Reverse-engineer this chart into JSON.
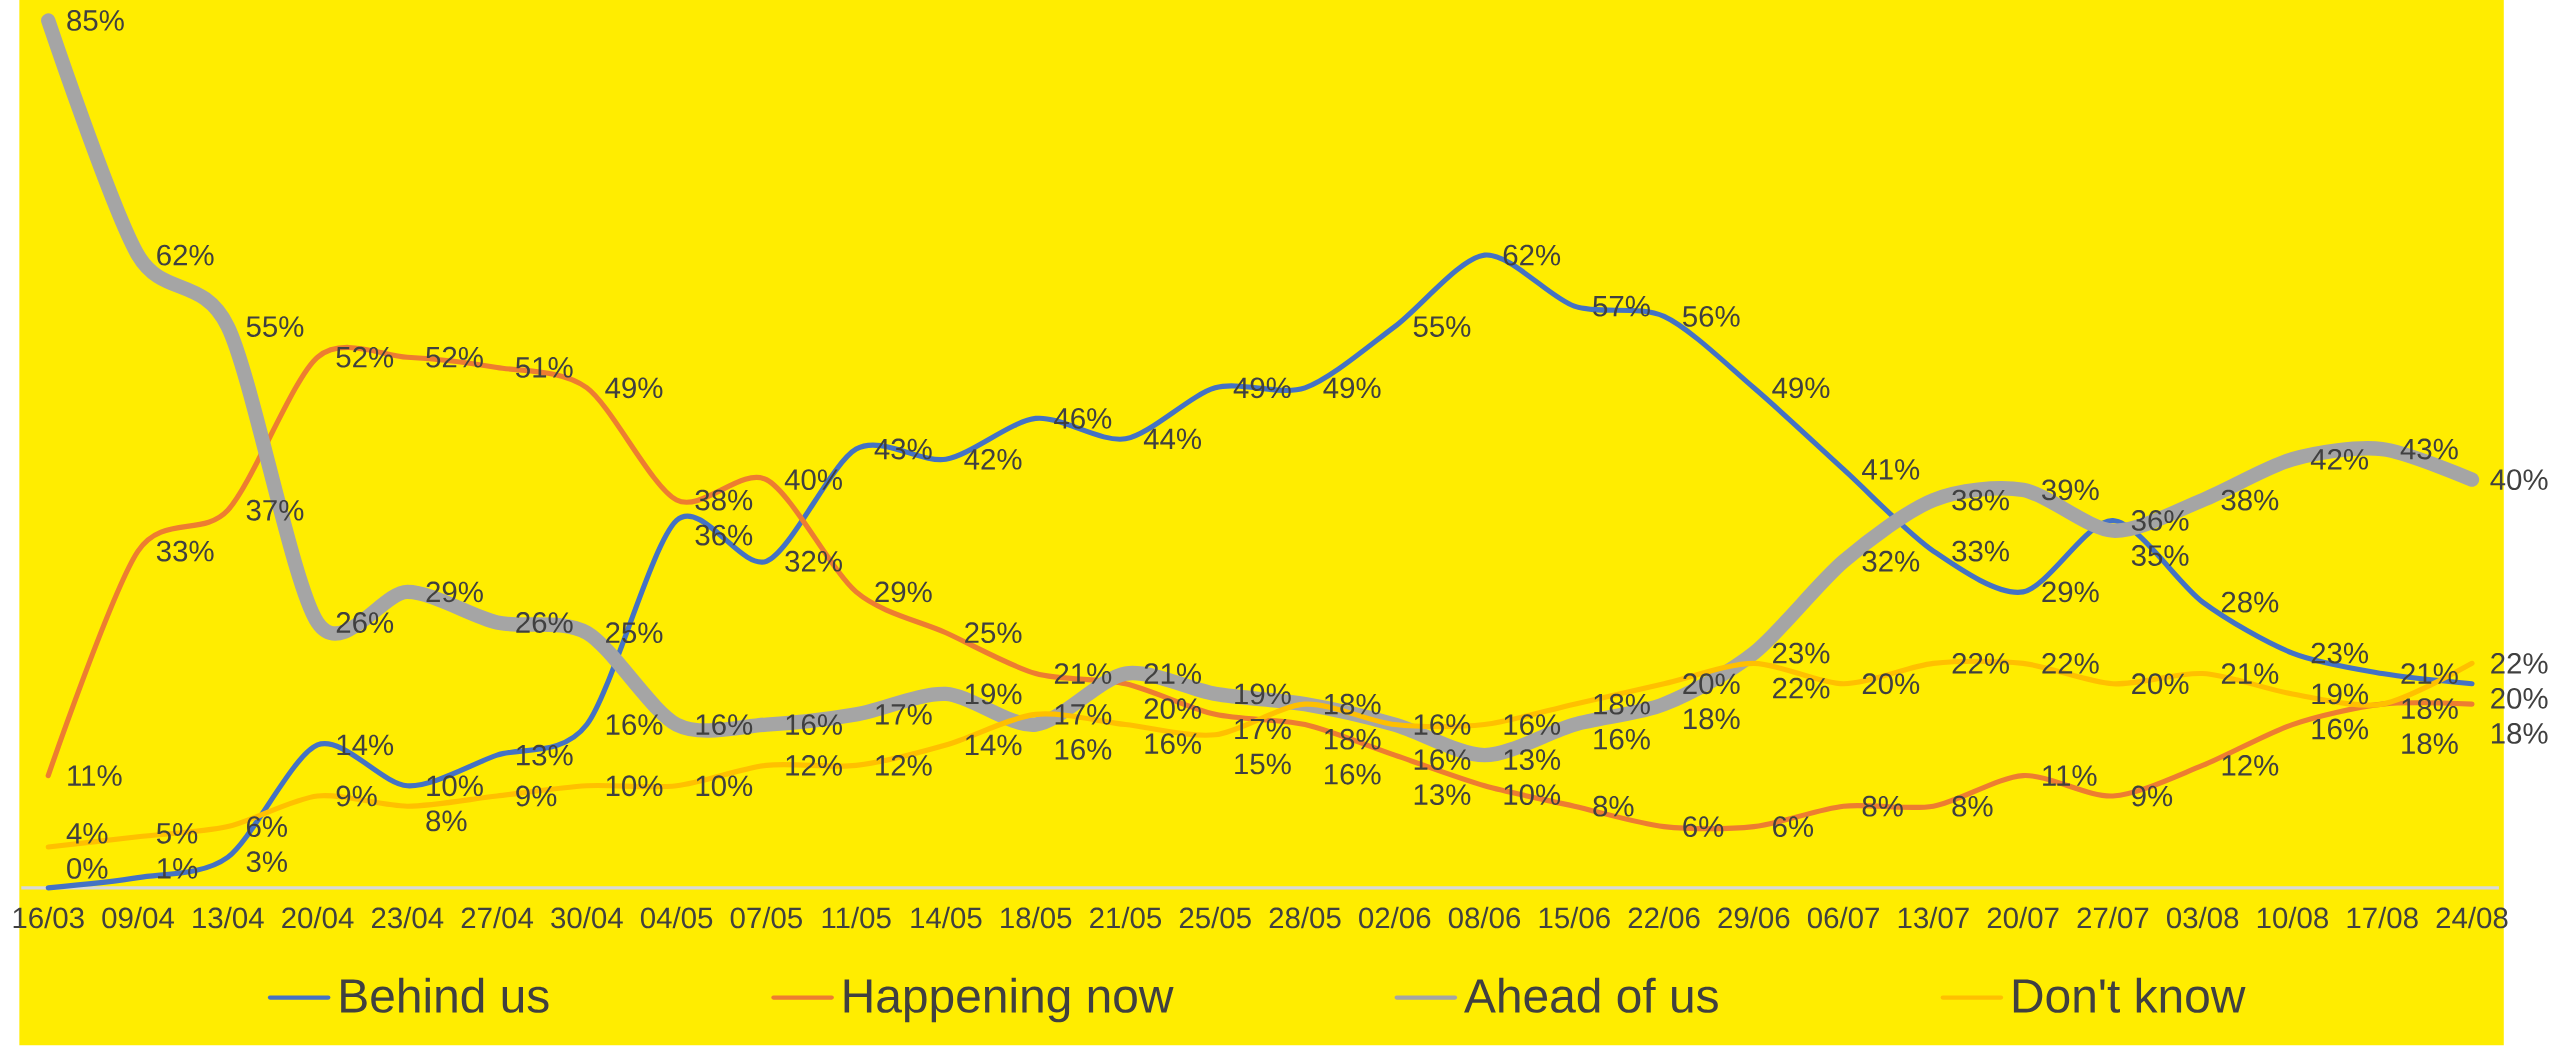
{
  "chart_data": {
    "type": "line",
    "categories": [
      "16/03",
      "09/04",
      "13/04",
      "20/04",
      "23/04",
      "27/04",
      "30/04",
      "04/05",
      "07/05",
      "11/05",
      "14/05",
      "18/05",
      "21/05",
      "25/05",
      "28/05",
      "02/06",
      "08/06",
      "15/06",
      "22/06",
      "29/06",
      "06/07",
      "13/07",
      "20/07",
      "27/07",
      "03/08",
      "10/08",
      "17/08",
      "24/08"
    ],
    "series": [
      {
        "name": "Behind us",
        "color": "#4472c4",
        "values": [
          0,
          1,
          3,
          14,
          10,
          13,
          16,
          36,
          32,
          43,
          42,
          46,
          44,
          49,
          49,
          55,
          62,
          57,
          56,
          49,
          41,
          33,
          29,
          36,
          28,
          23,
          21,
          20
        ],
        "value_labels": [
          "0%",
          "1%",
          "3%",
          "14%",
          "10%",
          "13%",
          "16%",
          "36%",
          "32%",
          "43%",
          "42%",
          "46%",
          "44%",
          "49%",
          "49%",
          "55%",
          "62%",
          "57%",
          "56%",
          "49%",
          "41%",
          "33%",
          "29%",
          "36%",
          "28%",
          "23%",
          "21%",
          "20%"
        ]
      },
      {
        "name": "Happening now",
        "color": "#ed7d31",
        "values": [
          11,
          33,
          37,
          52,
          52,
          51,
          49,
          38,
          40,
          29,
          25,
          21,
          20,
          17,
          16,
          13,
          10,
          8,
          6,
          6,
          8,
          8,
          11,
          9,
          12,
          16,
          18,
          18
        ],
        "value_labels": [
          "11%",
          "33%",
          "37%",
          "52%",
          "52%",
          "51%",
          "49%",
          "38%",
          "40%",
          "29%",
          "25%",
          "21%",
          "20%",
          "17%",
          "16%",
          "13%",
          "10%",
          "8%",
          "6%",
          "6%",
          "8%",
          "8%",
          "11%",
          "9%",
          "12%",
          "16%",
          "18%",
          "18%"
        ]
      },
      {
        "name": "Ahead of us",
        "color": "#a5a5a5",
        "values": [
          85,
          62,
          55,
          26,
          29,
          26,
          25,
          16,
          16,
          17,
          19,
          16,
          21,
          19,
          18,
          16,
          13,
          16,
          18,
          23,
          32,
          38,
          39,
          35,
          38,
          42,
          43,
          40
        ],
        "value_labels": [
          "85%",
          "62%",
          "55%",
          "26%",
          "29%",
          "26%",
          "25%",
          "16%",
          "16%",
          "17%",
          "19%",
          "16%",
          "21%",
          "19%",
          "18%",
          "16%",
          "13%",
          "16%",
          "18%",
          "23%",
          "32%",
          "38%",
          "39%",
          "35%",
          "38%",
          "42%",
          "43%",
          "40%"
        ]
      },
      {
        "name": "Don't know",
        "color": "#ffc000",
        "values": [
          4,
          5,
          6,
          9,
          8,
          9,
          10,
          10,
          12,
          12,
          14,
          17,
          16,
          15,
          18,
          16,
          16,
          18,
          20,
          22,
          20,
          22,
          22,
          20,
          21,
          19,
          18,
          22
        ],
        "value_labels": [
          "4%",
          "5%",
          "6%",
          "9%",
          "8%",
          "9%",
          "10%",
          "10%",
          "12%",
          "12%",
          "14%",
          "17%",
          "16%",
          "15%",
          "18%",
          "16%",
          "16%",
          "18%",
          "20%",
          "22%",
          "20%",
          "22%",
          "22%",
          "20%",
          "21%",
          "19%",
          "18%",
          "22%"
        ]
      }
    ],
    "ylim": [
      0,
      87
    ],
    "tick_labels": "x",
    "legend": "bottom",
    "grid": false
  }
}
